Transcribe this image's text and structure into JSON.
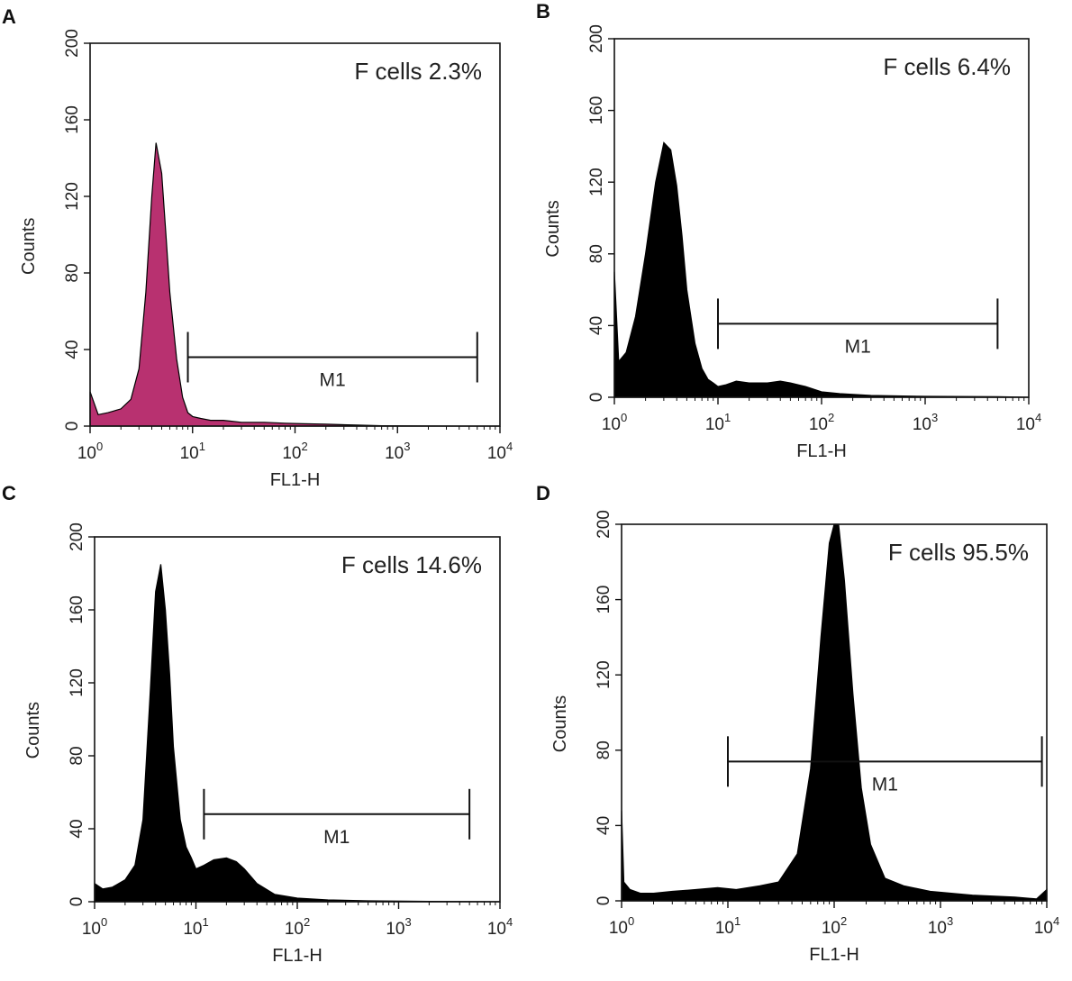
{
  "chart_data": [
    {
      "panel": "A",
      "type": "area",
      "annotation": "F cells 2.3%",
      "xlabel": "FL1-H",
      "ylabel": "Counts",
      "xscale": "log",
      "xlim": [
        1,
        10000
      ],
      "ylim": [
        0,
        200
      ],
      "x_ticks": [
        "10^0",
        "10^1",
        "10^2",
        "10^3",
        "10^4"
      ],
      "y_ticks": [
        0,
        40,
        80,
        120,
        160,
        200
      ],
      "fill_color": "#b83170",
      "marker": {
        "label": "M1",
        "from": 9,
        "to": 6000,
        "y": 36
      },
      "series": [
        {
          "x": [
            1,
            1.2,
            1.5,
            2,
            2.5,
            3,
            3.5,
            4,
            4.4,
            5,
            5.5,
            6,
            7,
            8,
            9,
            10,
            12,
            15,
            20,
            30,
            50,
            80,
            120,
            200,
            400,
            700,
            2000,
            6000,
            10000
          ],
          "y": [
            18,
            6,
            7,
            9,
            14,
            30,
            70,
            120,
            148,
            132,
            100,
            70,
            35,
            15,
            7,
            5,
            4,
            3,
            3,
            2,
            2,
            1.5,
            1.2,
            1,
            0.5,
            0.2,
            0.1,
            0,
            0
          ]
        }
      ]
    },
    {
      "panel": "B",
      "type": "area",
      "annotation": "F cells 6.4%",
      "xlabel": "FL1-H",
      "ylabel": "Counts",
      "xscale": "log",
      "xlim": [
        1,
        10000
      ],
      "ylim": [
        0,
        200
      ],
      "x_ticks": [
        "10^0",
        "10^1",
        "10^2",
        "10^3",
        "10^4"
      ],
      "y_ticks": [
        0,
        40,
        80,
        120,
        160,
        200
      ],
      "fill_color": "#000000",
      "marker": {
        "label": "M1",
        "from": 10,
        "to": 5000,
        "y": 41
      },
      "series": [
        {
          "x": [
            1,
            1.1,
            1.3,
            1.6,
            2,
            2.5,
            3,
            3.5,
            4,
            4.5,
            5,
            6,
            7,
            8,
            9,
            10,
            12,
            15,
            20,
            30,
            40,
            50,
            70,
            100,
            150,
            300,
            1000,
            5000,
            10000
          ],
          "y": [
            70,
            20,
            25,
            45,
            80,
            120,
            142,
            138,
            118,
            90,
            60,
            30,
            16,
            10,
            8,
            6,
            7,
            9,
            8,
            8,
            9,
            8,
            6,
            3,
            2,
            1,
            0.5,
            0.3,
            0
          ]
        }
      ]
    },
    {
      "panel": "C",
      "type": "area",
      "annotation": "F cells 14.6%",
      "xlabel": "FL1-H",
      "ylabel": "Counts",
      "xscale": "log",
      "xlim": [
        1,
        10000
      ],
      "ylim": [
        0,
        200
      ],
      "x_ticks": [
        "10^0",
        "10^1",
        "10^2",
        "10^3",
        "10^4"
      ],
      "y_ticks": [
        0,
        40,
        80,
        120,
        160,
        200
      ],
      "fill_color": "#000000",
      "marker": {
        "label": "M1",
        "from": 12,
        "to": 5000,
        "y": 48
      },
      "series": [
        {
          "x": [
            1,
            1.2,
            1.5,
            2,
            2.5,
            3,
            3.5,
            4,
            4.5,
            5,
            5.5,
            6,
            7,
            8,
            9,
            10,
            12,
            15,
            20,
            25,
            30,
            40,
            60,
            100,
            200,
            500,
            2000,
            10000
          ],
          "y": [
            10,
            7,
            8,
            12,
            20,
            45,
            110,
            170,
            185,
            160,
            125,
            85,
            45,
            30,
            24,
            18,
            20,
            23,
            24,
            22,
            18,
            10,
            4,
            2,
            1,
            0.5,
            0.2,
            0
          ]
        }
      ]
    },
    {
      "panel": "D",
      "type": "area",
      "annotation": "F cells 95.5%",
      "xlabel": "FL1-H",
      "ylabel": "Counts",
      "xscale": "log",
      "xlim": [
        1,
        10000
      ],
      "ylim": [
        0,
        200
      ],
      "x_ticks": [
        "10^0",
        "10^1",
        "10^2",
        "10^3",
        "10^4"
      ],
      "y_ticks": [
        0,
        40,
        80,
        120,
        160,
        200
      ],
      "fill_color": "#000000",
      "marker": {
        "label": "M1",
        "from": 10,
        "to": 9000,
        "y": 74
      },
      "series": [
        {
          "x": [
            1,
            1.05,
            1.2,
            1.5,
            2,
            3,
            5,
            8,
            12,
            20,
            30,
            45,
            60,
            75,
            90,
            100,
            110,
            125,
            150,
            180,
            220,
            300,
            450,
            800,
            2000,
            5000,
            8000,
            10000
          ],
          "y": [
            48,
            10,
            6,
            4,
            4,
            5,
            6,
            7,
            6,
            8,
            10,
            25,
            70,
            140,
            190,
            205,
            200,
            170,
            110,
            60,
            30,
            12,
            8,
            5,
            3,
            2,
            1,
            6
          ]
        }
      ]
    }
  ]
}
